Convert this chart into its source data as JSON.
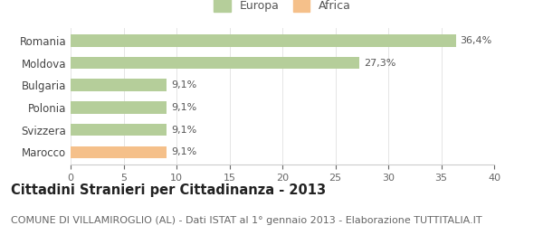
{
  "categories": [
    "Marocco",
    "Svizzera",
    "Polonia",
    "Bulgaria",
    "Moldova",
    "Romania"
  ],
  "values": [
    9.1,
    9.1,
    9.1,
    9.1,
    27.3,
    36.4
  ],
  "labels": [
    "9,1%",
    "9,1%",
    "9,1%",
    "9,1%",
    "27,3%",
    "36,4%"
  ],
  "bar_colors": [
    "#f5c08a",
    "#b5ce9a",
    "#b5ce9a",
    "#b5ce9a",
    "#b5ce9a",
    "#b5ce9a"
  ],
  "legend_entries": [
    "Europa",
    "Africa"
  ],
  "legend_colors": [
    "#b5ce9a",
    "#f5c08a"
  ],
  "title": "Cittadini Stranieri per Cittadinanza - 2013",
  "subtitle": "COMUNE DI VILLAMIROGLIO (AL) - Dati ISTAT al 1° gennaio 2013 - Elaborazione TUTTITALIA.IT",
  "xlim": [
    0,
    40
  ],
  "xticks": [
    0,
    5,
    10,
    15,
    20,
    25,
    30,
    35,
    40
  ],
  "background_color": "#ffffff",
  "bar_edge_color": "none",
  "title_fontsize": 10.5,
  "subtitle_fontsize": 8,
  "label_fontsize": 8,
  "tick_fontsize": 8,
  "ytick_fontsize": 8.5
}
